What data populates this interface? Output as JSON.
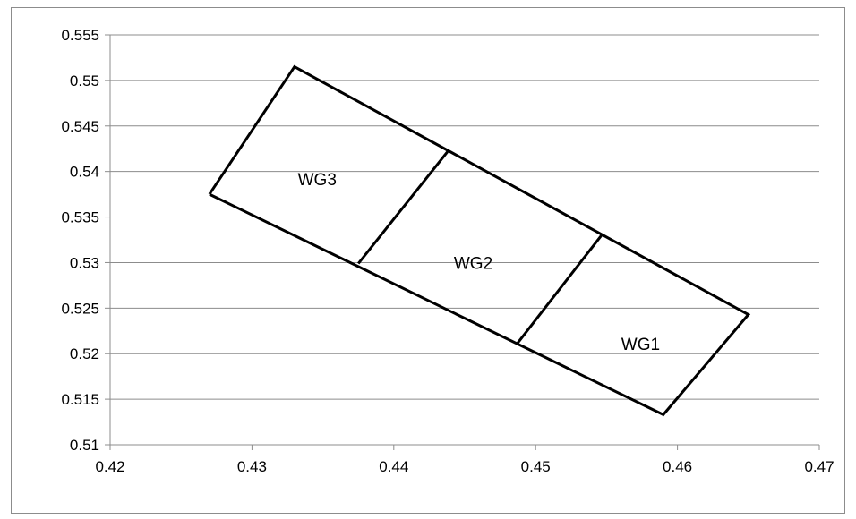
{
  "chart_data": {
    "type": "scatter",
    "title": "",
    "xlabel": "",
    "ylabel": "",
    "xlim": [
      0.42,
      0.47
    ],
    "ylim": [
      0.51,
      0.555
    ],
    "x_ticks": [
      "0.42",
      "0.43",
      "0.44",
      "0.45",
      "0.46",
      "0.47"
    ],
    "y_ticks": [
      "0.51",
      "0.515",
      "0.52",
      "0.525",
      "0.53",
      "0.535",
      "0.54",
      "0.545",
      "0.55",
      "0.555"
    ],
    "grid": "horizontal",
    "legend": "none",
    "series": [
      {
        "points": [
          [
            0.427,
            0.5375
          ],
          [
            0.433,
            0.5515
          ],
          [
            0.465,
            0.5243
          ],
          [
            0.459,
            0.5133
          ],
          [
            0.427,
            0.5375
          ]
        ]
      },
      {
        "points": [
          [
            0.4375,
            0.5299
          ],
          [
            0.4438,
            0.5422
          ]
        ]
      },
      {
        "points": [
          [
            0.4487,
            0.5211
          ],
          [
            0.4547,
            0.5331
          ]
        ]
      }
    ],
    "annotations": [
      {
        "text": "WG3",
        "x": 0.4346,
        "y": 0.5385
      },
      {
        "text": "WG2",
        "x": 0.4456,
        "y": 0.5293
      },
      {
        "text": "WG1",
        "x": 0.4574,
        "y": 0.5204
      }
    ],
    "colors": {
      "line": "#000000",
      "grid": "#8c8c8c"
    }
  }
}
